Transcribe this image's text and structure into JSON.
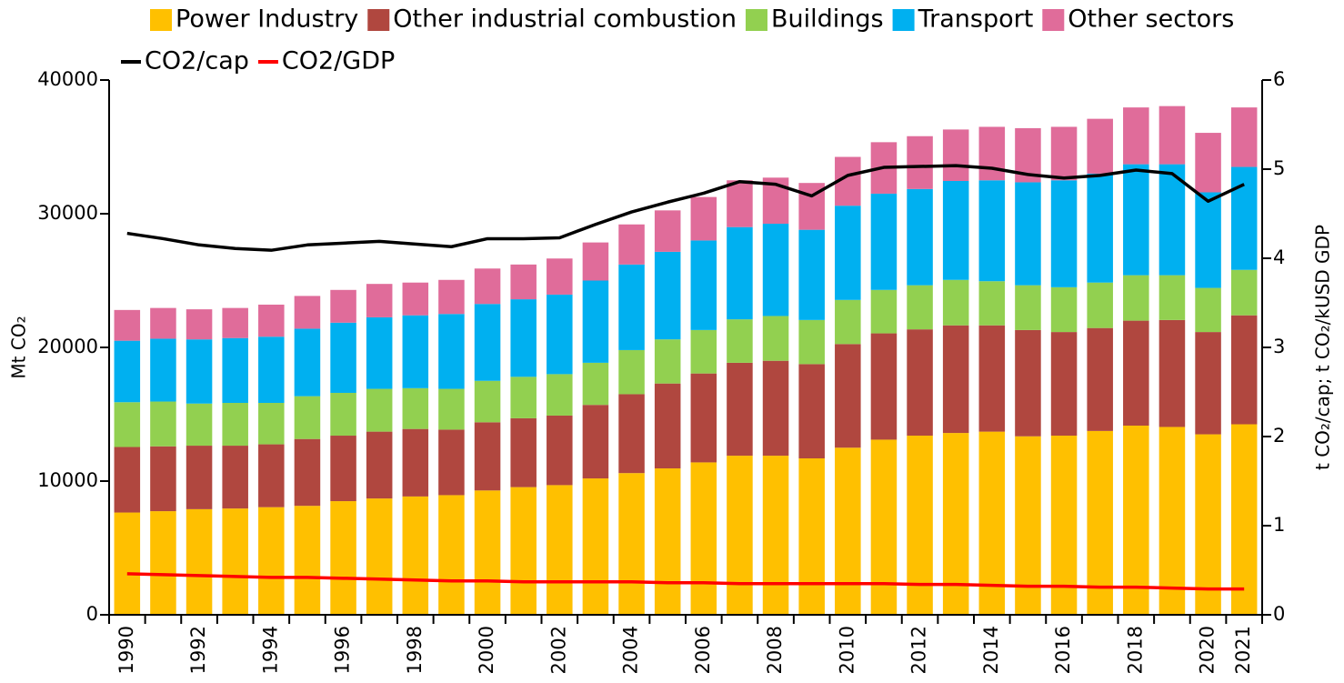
{
  "chart_data": {
    "type": "bar",
    "stacked": true,
    "categories": [
      "1990",
      null,
      "1992",
      null,
      "1994",
      null,
      "1996",
      null,
      "1998",
      null,
      "2000",
      null,
      "2002",
      null,
      "2004",
      null,
      "2006",
      null,
      "2008",
      null,
      "2010",
      null,
      "2012",
      null,
      "2014",
      null,
      "2016",
      null,
      "2018",
      null,
      "2020",
      "2021"
    ],
    "ylabel": "Mt CO₂",
    "y2label": "t CO₂/cap; t CO₂/kUSD GDP",
    "ylim": [
      0,
      40000
    ],
    "yticks": [
      0,
      10000,
      20000,
      30000,
      40000
    ],
    "y2lim": [
      0,
      6
    ],
    "y2ticks": [
      0,
      1,
      2,
      3,
      4,
      5,
      6
    ],
    "grid": false,
    "legend": "top-left",
    "series": [
      {
        "name": "Power Industry",
        "color": "#ffc000",
        "values": [
          7650,
          7750,
          7900,
          7950,
          8050,
          8150,
          8500,
          8700,
          8850,
          8950,
          9300,
          9550,
          9700,
          10200,
          10600,
          10950,
          11400,
          11900,
          11900,
          11700,
          12500,
          13100,
          13400,
          13600,
          13700,
          13350,
          13400,
          13750,
          14150,
          14050,
          13500,
          14250
        ]
      },
      {
        "name": "Other industrial combustion",
        "color": "#b0473f",
        "values": [
          4900,
          4850,
          4750,
          4700,
          4700,
          5000,
          4900,
          5000,
          5050,
          4900,
          5100,
          5150,
          5200,
          5500,
          5900,
          6350,
          6650,
          6950,
          7100,
          7050,
          7750,
          7950,
          7950,
          8050,
          7950,
          7950,
          7750,
          7700,
          7850,
          8000,
          7650,
          8150
        ]
      },
      {
        "name": "Buildings",
        "color": "#92d050",
        "values": [
          3350,
          3350,
          3150,
          3200,
          3100,
          3200,
          3200,
          3200,
          3050,
          3050,
          3100,
          3100,
          3100,
          3150,
          3300,
          3300,
          3250,
          3250,
          3350,
          3300,
          3300,
          3250,
          3300,
          3400,
          3300,
          3350,
          3350,
          3400,
          3400,
          3350,
          3300,
          3400
        ]
      },
      {
        "name": "Transport",
        "color": "#00b0f0",
        "values": [
          4600,
          4700,
          4800,
          4850,
          4950,
          5050,
          5250,
          5350,
          5450,
          5600,
          5750,
          5800,
          5950,
          6150,
          6400,
          6550,
          6700,
          6900,
          6900,
          6750,
          7050,
          7200,
          7200,
          7400,
          7550,
          7700,
          8000,
          8150,
          8300,
          8300,
          7150,
          7700
        ]
      },
      {
        "name": "Other sectors",
        "color": "#e06c9a",
        "values": [
          2300,
          2300,
          2250,
          2250,
          2400,
          2450,
          2450,
          2500,
          2450,
          2550,
          2650,
          2600,
          2700,
          2850,
          3000,
          3100,
          3250,
          3500,
          3450,
          3500,
          3650,
          3850,
          3950,
          3850,
          4000,
          4050,
          4000,
          4100,
          4250,
          4350,
          4450,
          4450
        ]
      },
      {
        "name": "CO2/cap",
        "type": "line",
        "axis": "y2",
        "color": "#000000",
        "values": [
          4.28,
          4.22,
          4.15,
          4.11,
          4.09,
          4.15,
          4.17,
          4.19,
          4.16,
          4.13,
          4.22,
          4.22,
          4.23,
          4.38,
          4.52,
          4.63,
          4.73,
          4.86,
          4.83,
          4.7,
          4.93,
          5.02,
          5.03,
          5.04,
          5.01,
          4.94,
          4.9,
          4.93,
          4.99,
          4.95,
          4.64,
          4.83
        ]
      },
      {
        "name": "CO2/GDP",
        "type": "line",
        "axis": "y2",
        "color": "#ff0000",
        "values": [
          0.46,
          0.45,
          0.44,
          0.43,
          0.42,
          0.42,
          0.41,
          0.4,
          0.39,
          0.38,
          0.38,
          0.37,
          0.37,
          0.37,
          0.37,
          0.36,
          0.36,
          0.35,
          0.35,
          0.35,
          0.35,
          0.35,
          0.34,
          0.34,
          0.33,
          0.32,
          0.32,
          0.31,
          0.31,
          0.3,
          0.29,
          0.29
        ]
      }
    ]
  }
}
